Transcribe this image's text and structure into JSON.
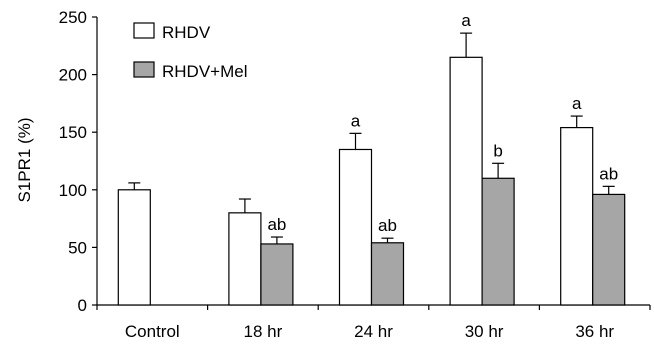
{
  "chart_data": {
    "type": "bar",
    "categories": [
      "Control",
      "18 hr",
      "24 hr",
      "30 hr",
      "36 hr"
    ],
    "series": [
      {
        "name": "RHDV",
        "color": "#ffffff",
        "values": [
          100,
          80,
          135,
          215,
          154
        ],
        "errors": [
          6,
          12,
          14,
          21,
          10
        ],
        "labels": [
          "",
          "",
          "a",
          "a",
          "a"
        ]
      },
      {
        "name": "RHDV+Mel",
        "color": "#a6a6a6",
        "values": [
          null,
          53,
          54,
          110,
          96
        ],
        "errors": [
          null,
          6,
          4,
          13,
          7
        ],
        "labels": [
          "",
          "ab",
          "ab",
          "b",
          "ab"
        ]
      }
    ],
    "title": "",
    "xlabel": "",
    "ylabel": "S1PR1 (%)",
    "ylim": [
      0,
      250
    ],
    "yticks": [
      0,
      50,
      100,
      150,
      200,
      250
    ],
    "grid": false,
    "legend_position": "top-left"
  }
}
